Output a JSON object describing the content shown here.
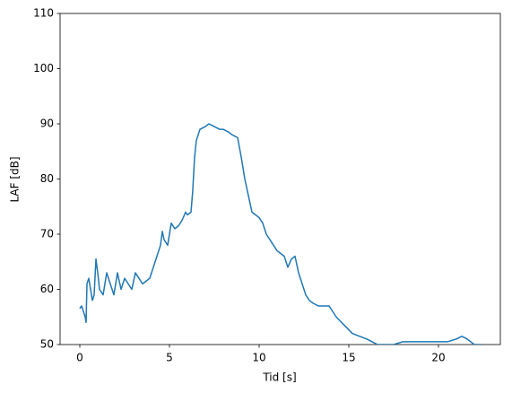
{
  "chart_data": {
    "type": "line",
    "xlabel": "Tid [s]",
    "ylabel": "LAF [dB]",
    "xlim": [
      -1.1,
      23.45
    ],
    "ylim": [
      50,
      110
    ],
    "xticks": [
      0,
      5,
      10,
      15,
      20
    ],
    "yticks": [
      50,
      60,
      70,
      80,
      90,
      100,
      110
    ],
    "grid": false,
    "x": [
      0,
      0.1,
      0.3,
      0.35,
      0.4,
      0.5,
      0.6,
      0.7,
      0.8,
      0.9,
      1.0,
      1.1,
      1.3,
      1.5,
      1.7,
      1.9,
      2.1,
      2.3,
      2.5,
      2.7,
      2.9,
      3.1,
      3.3,
      3.5,
      3.7,
      3.9,
      4.1,
      4.3,
      4.5,
      4.6,
      4.7,
      4.9,
      5.0,
      5.1,
      5.3,
      5.5,
      5.7,
      5.9,
      6.0,
      6.2,
      6.3,
      6.4,
      6.5,
      6.7,
      7.0,
      7.2,
      7.5,
      7.8,
      8.0,
      8.3,
      8.5,
      8.8,
      9.0,
      9.2,
      9.4,
      9.6,
      9.8,
      10.0,
      10.2,
      10.4,
      10.6,
      10.8,
      11.0,
      11.2,
      11.4,
      11.6,
      11.8,
      12.0,
      12.2,
      12.4,
      12.6,
      12.8,
      13.0,
      13.3,
      13.6,
      13.9,
      14.1,
      14.3,
      14.6,
      14.9,
      15.2,
      15.6,
      16.0,
      16.3,
      16.6,
      17.0,
      17.5,
      18.0,
      18.5,
      19.0,
      19.5,
      20.0,
      20.5,
      21.0,
      21.3,
      21.6,
      22.0,
      22.4
    ],
    "series": [
      {
        "color": "#1f77b4",
        "values": [
          56.5,
          57,
          55,
          54,
          61,
          62,
          60,
          58,
          59,
          65.5,
          63,
          60,
          59,
          63,
          61,
          59,
          63,
          60,
          62,
          61,
          60,
          63,
          62,
          61,
          61.5,
          62,
          64,
          66,
          68,
          70.5,
          69,
          68,
          70,
          72,
          71,
          71.5,
          72.5,
          74,
          73.5,
          74,
          78,
          84,
          87,
          89,
          89.5,
          90,
          89.5,
          89,
          89,
          88.5,
          88,
          87.5,
          84,
          80,
          77,
          74,
          73.5,
          73,
          72,
          70,
          69,
          68,
          67,
          66.5,
          66,
          64,
          65.5,
          66,
          63,
          61,
          59,
          58,
          57.5,
          57,
          57,
          57,
          56,
          55,
          54,
          53,
          52,
          51.5,
          51,
          50.5,
          50,
          50,
          50,
          50.5,
          50.5,
          50.5,
          50.5,
          50.5,
          50.5,
          51,
          51.5,
          51,
          50,
          50
        ]
      }
    ]
  }
}
